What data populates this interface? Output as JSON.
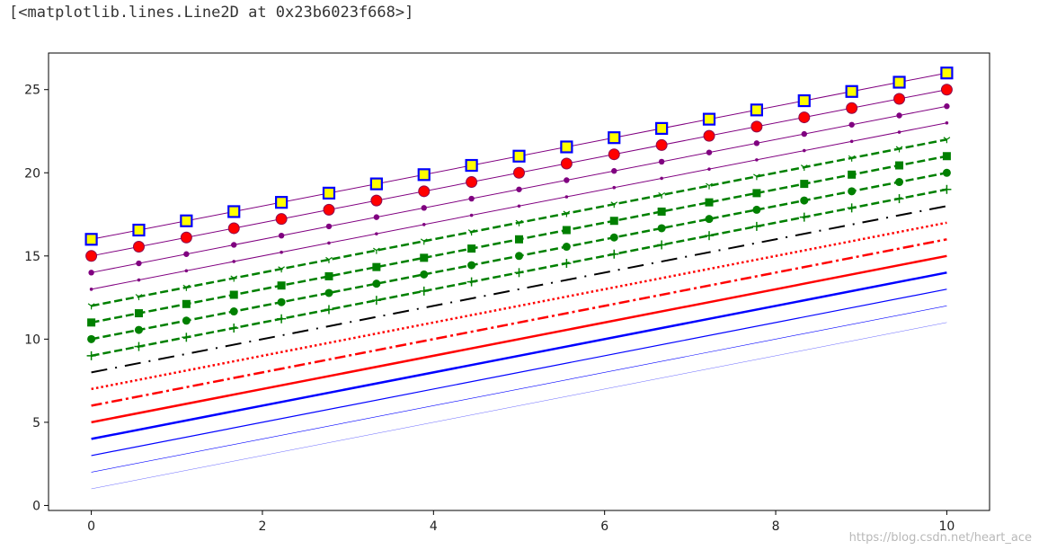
{
  "output_text": "[<matplotlib.lines.Line2D at 0x23b6023f668>]",
  "watermark": "https://blog.csdn.net/heart_ace",
  "chart_data": {
    "type": "line",
    "title": "",
    "xlabel": "",
    "ylabel": "",
    "xlim": [
      -0.5,
      10.5
    ],
    "ylim": [
      -0.3,
      27.2
    ],
    "xticks": [
      0,
      2,
      4,
      6,
      8,
      10
    ],
    "yticks": [
      0,
      5,
      10,
      15,
      20,
      25
    ],
    "grid": false,
    "legend": "none",
    "x_start": 0,
    "x_end": 10,
    "slope": 1,
    "series": [
      {
        "intercept": 1,
        "color": "#0000ff",
        "width": 0.3,
        "opacity": 1
      },
      {
        "intercept": 2,
        "color": "#0000ff",
        "width": 0.6,
        "opacity": 1
      },
      {
        "intercept": 3,
        "color": "#0000ff",
        "width": 1.2,
        "opacity": 1
      },
      {
        "intercept": 4,
        "color": "#0000ff",
        "width": 2.5,
        "opacity": 1
      },
      {
        "intercept": 5,
        "color": "#ff0000",
        "width": 2.5,
        "style": "solid"
      },
      {
        "intercept": 6,
        "color": "#ff0000",
        "width": 2.5,
        "style": "dashdot"
      },
      {
        "intercept": 7,
        "color": "#ff0000",
        "width": 2.5,
        "style": "dotted"
      },
      {
        "intercept": 8,
        "color": "#000000",
        "width": 2.0,
        "style": "dash-custom"
      },
      {
        "intercept": 9,
        "color": "#008000",
        "width": 2.5,
        "style": "dashed",
        "marker": "+"
      },
      {
        "intercept": 10,
        "color": "#008000",
        "width": 2.5,
        "style": "dashed",
        "marker": "o"
      },
      {
        "intercept": 11,
        "color": "#008000",
        "width": 2.5,
        "style": "dashed",
        "marker": "s"
      },
      {
        "intercept": 12,
        "color": "#008000",
        "width": 2.5,
        "style": "dashed",
        "marker": "1"
      },
      {
        "intercept": 13,
        "color": "#800080",
        "width": 1.0,
        "marker": "."
      },
      {
        "intercept": 14,
        "color": "#800080",
        "width": 1.0,
        "marker": "o-small"
      },
      {
        "intercept": 15,
        "color": "#800080",
        "width": 1.0,
        "marker": "o-red"
      },
      {
        "intercept": 16,
        "color": "#800080",
        "width": 1.0,
        "marker": "s-yellow"
      }
    ],
    "marker_points": 19
  }
}
